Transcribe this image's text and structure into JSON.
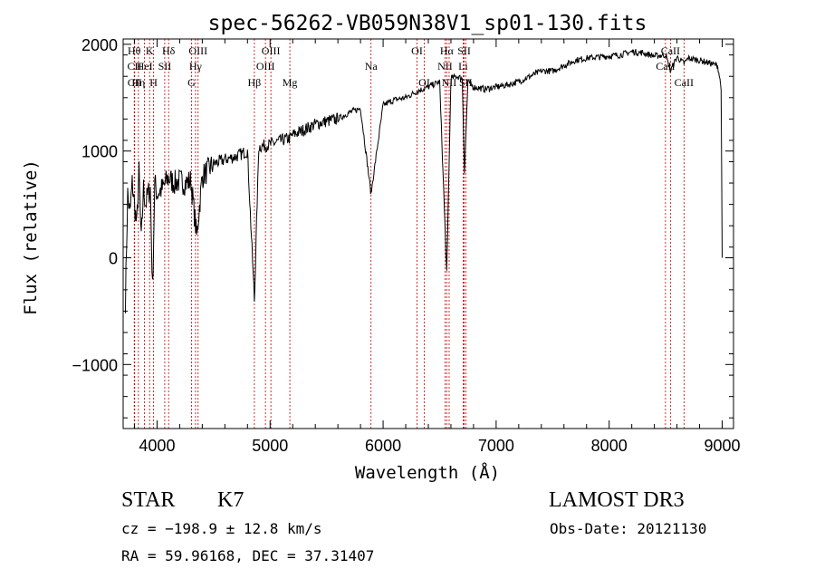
{
  "chart_data": {
    "type": "line",
    "title": "spec-56262-VB059N38V1_sp01-130.fits",
    "xlabel": "Wavelength (Å)",
    "ylabel": "Flux (relative)",
    "xlim": [
      3700,
      9100
    ],
    "ylim": [
      -1600,
      2050
    ],
    "xticks": [
      4000,
      5000,
      6000,
      7000,
      8000,
      9000
    ],
    "yticks": [
      -1000,
      0,
      1000,
      2000
    ],
    "xtick_labels": [
      "4000",
      "5000",
      "6000",
      "7000",
      "8000",
      "9000"
    ],
    "ytick_labels": [
      "−1000",
      "0",
      "1000",
      "2000"
    ],
    "series": [
      {
        "name": "flux",
        "x": [
          3720,
          3740,
          3760,
          3780,
          3800,
          3820,
          3840,
          3860,
          3880,
          3900,
          3920,
          3940,
          3960,
          3980,
          4000,
          4050,
          4100,
          4150,
          4200,
          4250,
          4300,
          4350,
          4400,
          4450,
          4500,
          4550,
          4600,
          4700,
          4800,
          4861,
          4900,
          5000,
          5100,
          5175,
          5200,
          5300,
          5400,
          5500,
          5600,
          5700,
          5800,
          5893,
          6000,
          6100,
          6200,
          6300,
          6400,
          6500,
          6563,
          6600,
          6650,
          6700,
          6720,
          6750,
          6800,
          6900,
          7000,
          7100,
          7200,
          7300,
          7400,
          7500,
          7600,
          7700,
          7800,
          7900,
          8000,
          8100,
          8200,
          8300,
          8400,
          8500,
          8542,
          8600,
          8662,
          8700,
          8800,
          8900,
          8960,
          8990,
          9000
        ],
        "values": [
          -400,
          600,
          400,
          700,
          500,
          300,
          800,
          150,
          650,
          500,
          600,
          650,
          -300,
          700,
          600,
          650,
          750,
          700,
          720,
          700,
          720,
          200,
          760,
          820,
          880,
          900,
          920,
          950,
          1000,
          -400,
          1040,
          1060,
          1100,
          1120,
          1150,
          1200,
          1250,
          1280,
          1300,
          1360,
          1400,
          600,
          1430,
          1480,
          1500,
          1560,
          1600,
          1650,
          -150,
          1680,
          1700,
          1680,
          800,
          1650,
          1600,
          1580,
          1600,
          1620,
          1650,
          1700,
          1750,
          1750,
          1800,
          1850,
          1870,
          1880,
          1890,
          1900,
          1930,
          1920,
          1890,
          1900,
          1750,
          1880,
          1820,
          1870,
          1850,
          1820,
          1800,
          1600,
          0
        ]
      }
    ],
    "spectral_lines": [
      {
        "label": "Hθ",
        "wl": 3798,
        "row": 1
      },
      {
        "label": "CII",
        "wl": 3800,
        "row": 2
      },
      {
        "label": "CII",
        "wl": 3802,
        "row": 3
      },
      {
        "label": "K",
        "wl": 3934,
        "row": 1
      },
      {
        "label": "HeI",
        "wl": 3889,
        "row": 2
      },
      {
        "label": "Hη",
        "wl": 3835,
        "row": 3
      },
      {
        "label": "H",
        "wl": 3969,
        "row": 3
      },
      {
        "label": "SII",
        "wl": 4068,
        "row": 2
      },
      {
        "label": "Hδ",
        "wl": 4102,
        "row": 1
      },
      {
        "label": "OIII",
        "wl": 4363,
        "row": 1
      },
      {
        "label": "Hγ",
        "wl": 4340,
        "row": 2
      },
      {
        "label": "G",
        "wl": 4305,
        "row": 3
      },
      {
        "label": "Hβ",
        "wl": 4861,
        "row": 3
      },
      {
        "label": "OIII",
        "wl": 4959,
        "row": 2
      },
      {
        "label": "OIII",
        "wl": 5007,
        "row": 1
      },
      {
        "label": "Mg",
        "wl": 5175,
        "row": 3
      },
      {
        "label": "Na",
        "wl": 5893,
        "row": 2
      },
      {
        "label": "OI",
        "wl": 6300,
        "row": 1
      },
      {
        "label": "OI",
        "wl": 6364,
        "row": 3
      },
      {
        "label": "Hα",
        "wl": 6563,
        "row": 1
      },
      {
        "label": "NII",
        "wl": 6548,
        "row": 2
      },
      {
        "label": "NII",
        "wl": 6584,
        "row": 3
      },
      {
        "label": "SII",
        "wl": 6717,
        "row": 1
      },
      {
        "label": "Li",
        "wl": 6708,
        "row": 2
      },
      {
        "label": "SII",
        "wl": 6731,
        "row": 3
      },
      {
        "label": "CaII",
        "wl": 8498,
        "row": 2
      },
      {
        "label": "CaII",
        "wl": 8542,
        "row": 1
      },
      {
        "label": "CaII",
        "wl": 8662,
        "row": 3
      }
    ]
  },
  "info": {
    "class_label": "STAR",
    "subclass": "K7",
    "survey": "LAMOST DR3",
    "cz": "cz = −198.9 ± 12.8 km/s",
    "obs_date": "Obs-Date: 20121130",
    "radec": "RA =  59.96168, DEC =  37.31407"
  },
  "colors": {
    "spectrum": "#000000",
    "line_marker": "#c00000",
    "axes": "#000000",
    "background": "#ffffff"
  }
}
